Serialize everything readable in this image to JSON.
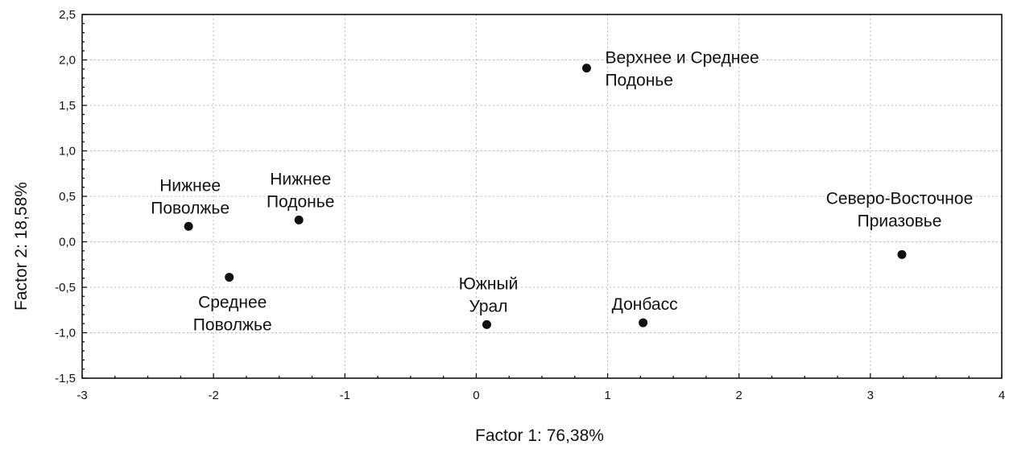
{
  "chart_data": {
    "type": "scatter",
    "xlabel": "Factor 1: 76,38%",
    "ylabel": "Factor 2: 18,58%",
    "xlim": [
      -3,
      4
    ],
    "ylim": [
      -1.5,
      2.5
    ],
    "grid": true,
    "x_ticks": [
      {
        "value": -3,
        "label": "-3"
      },
      {
        "value": -2,
        "label": "-2"
      },
      {
        "value": -1,
        "label": "-1"
      },
      {
        "value": 0,
        "label": "0"
      },
      {
        "value": 1,
        "label": "1"
      },
      {
        "value": 2,
        "label": "2"
      },
      {
        "value": 3,
        "label": "3"
      },
      {
        "value": 4,
        "label": "4"
      }
    ],
    "y_ticks": [
      {
        "value": -1.5,
        "label": "-1,5"
      },
      {
        "value": -1.0,
        "label": "-1,0"
      },
      {
        "value": -0.5,
        "label": "-0,5"
      },
      {
        "value": 0.0,
        "label": "0,0"
      },
      {
        "value": 0.5,
        "label": "0,5"
      },
      {
        "value": 1.0,
        "label": "1,0"
      },
      {
        "value": 1.5,
        "label": "1,5"
      },
      {
        "value": 2.0,
        "label": "2,0"
      },
      {
        "value": 2.5,
        "label": "2,5"
      }
    ],
    "points": [
      {
        "label_lines": [
          "Верхнее и Среднее",
          "Подонье"
        ],
        "x": 0.84,
        "y": 1.91,
        "label_position": "right"
      },
      {
        "label_lines": [
          "Нижнее",
          "Поволжье"
        ],
        "x": -2.19,
        "y": 0.17,
        "label_position": "above"
      },
      {
        "label_lines": [
          "Нижнее",
          "Подонье"
        ],
        "x": -1.35,
        "y": 0.24,
        "label_position": "above"
      },
      {
        "label_lines": [
          "Северо-Восточное",
          "Приазовье"
        ],
        "x": 3.24,
        "y": -0.14,
        "label_position": "above-left"
      },
      {
        "label_lines": [
          "Среднее",
          "Поволжье"
        ],
        "x": -1.88,
        "y": -0.39,
        "label_position": "below"
      },
      {
        "label_lines": [
          "Южный",
          "Урал"
        ],
        "x": 0.08,
        "y": -0.91,
        "label_position": "above"
      },
      {
        "label_lines": [
          "Донбасс"
        ],
        "x": 1.27,
        "y": -0.89,
        "label_position": "above"
      }
    ]
  }
}
